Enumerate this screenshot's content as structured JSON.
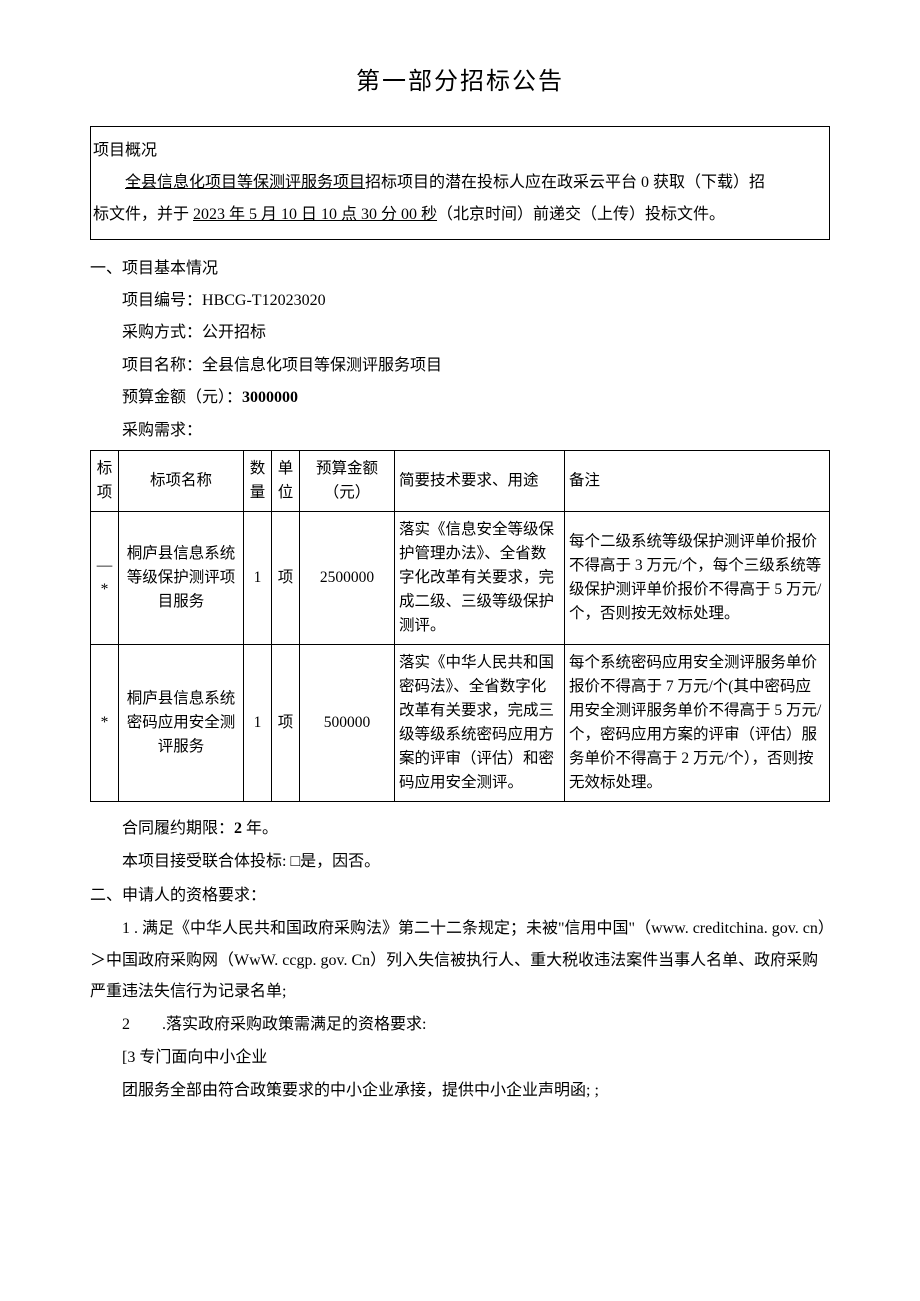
{
  "title": "第一部分招标公告",
  "overview": {
    "label": "项目概况",
    "projectNameUnderlined": "全县信息化项目等保测评服务项目",
    "midText1": "招标项目的潜在投标人应在政采云平台 0 获取（下载）招",
    "line2_prefix": "标文件，并于 ",
    "deadlineUnderlined": "2023 年 5 月 10 日 10 点 30 分 00 秒",
    "line2_suffix": "（北京时间）前递交（上传）投标文件。"
  },
  "section1": {
    "heading": "一、项目基本情况",
    "projectNoLabel": "项目编号：",
    "projectNo": "HBCG-T12023020",
    "methodLabel": "采购方式：",
    "method": "公开招标",
    "projectNameLabel": "项目名称：",
    "projectName": "全县信息化项目等保测评服务项目",
    "budgetLabel": "预算金额（元）：",
    "budget": "3000000",
    "demandLabel": "采购需求："
  },
  "table": {
    "headers": {
      "idx": "标项",
      "name": "标项名称",
      "qty": "数量",
      "unit": "单位",
      "budget": "预算金额（元）",
      "tech": "简要技术要求、用途",
      "remark": "备注"
    },
    "rows": [
      {
        "idx": "—*",
        "name": "桐庐县信息系统等级保护测评项目服务",
        "qty": "1",
        "unit": "项",
        "budget": "2500000",
        "tech": "落实《信息安全等级保护管理办法》、全省数字化改革有关要求，完成二级、三级等级保护测评。",
        "remark": "每个二级系统等级保护测评单价报价不得高于 3 万元/个，每个三级系统等级保护测评单价报价不得高于 5 万元/个，否则按无效标处理。"
      },
      {
        "idx": "*",
        "name": "桐庐县信息系统密码应用安全测评服务",
        "qty": "1",
        "unit": "项",
        "budget": "500000",
        "tech": "落实《中华人民共和国密码法》、全省数字化改革有关要求，完成三级等级系统密码应用方案的评审（评估）和密码应用安全测评。",
        "remark": "每个系统密码应用安全测评服务单价报价不得高于 7 万元/个(其中密码应用安全测评服务单价不得高于 5 万元/个，密码应用方案的评审（评估）服务单价不得高于 2 万元/个），否则按无效标处理。"
      }
    ]
  },
  "afterTable": {
    "contractPeriod_pre": "合同履约期限：",
    "contractPeriod_bold": "2",
    "contractPeriod_post": " 年。",
    "consortium": "本项目接受联合体投标: □是，因否。"
  },
  "section2": {
    "heading": "二、申请人的资格要求：",
    "item1": "1 . 满足《中华人民共和国政府采购法》第二十二条规定；未被\"信用中国\"（www. creditchina. gov. cn）＞中国政府采购网（WwW. ccgp. gov. Cn）列入失信被执行人、重大税收违法案件当事人名单、政府采购严重违法失信行为记录名单;",
    "item2": "2　　.落实政府采购政策需满足的资格要求:",
    "item2a": "[3 专门面向中小企业",
    "item2b": "团服务全部由符合政策要求的中小企业承接，提供中小企业声明函; ;"
  }
}
